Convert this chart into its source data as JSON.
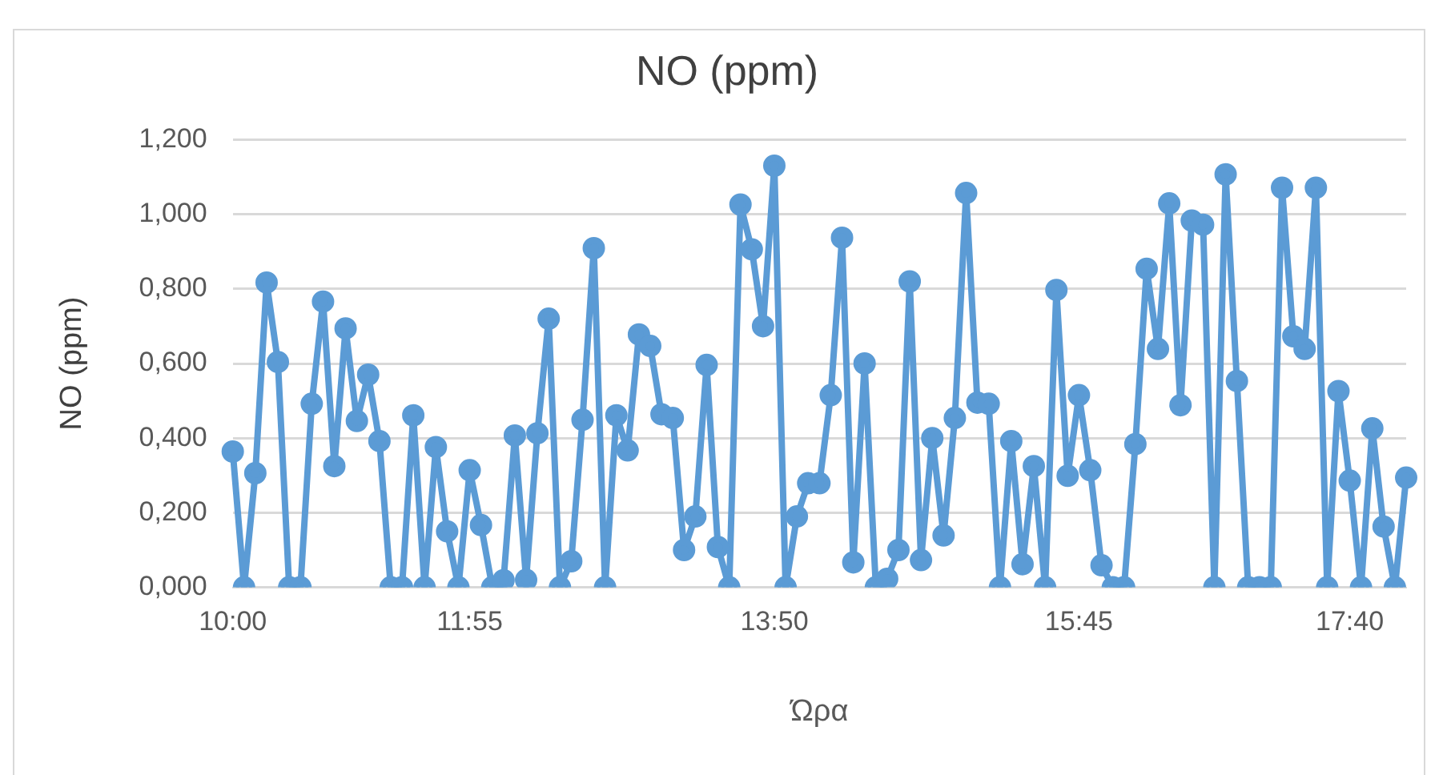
{
  "chart_data": {
    "type": "line",
    "title": "NO (ppm)",
    "xlabel": "Ώρα",
    "ylabel": "NO (ppm)",
    "categories": [
      "10:00",
      null,
      null,
      null,
      null,
      null,
      null,
      null,
      null,
      null,
      null,
      null,
      null,
      null,
      null,
      null,
      null,
      null,
      null,
      null,
      null,
      "11:55",
      null,
      null,
      null,
      null,
      null,
      null,
      null,
      null,
      null,
      null,
      null,
      null,
      null,
      null,
      null,
      null,
      null,
      null,
      null,
      null,
      null,
      null,
      null,
      null,
      null,
      null,
      "13:50",
      null,
      null,
      null,
      null,
      null,
      null,
      null,
      null,
      null,
      null,
      null,
      null,
      null,
      null,
      null,
      null,
      null,
      null,
      null,
      null,
      null,
      null,
      null,
      null,
      null,
      null,
      "15:45",
      null,
      null,
      null,
      null,
      null,
      null,
      null,
      null,
      null,
      null,
      null,
      null,
      null,
      null,
      null,
      null,
      null,
      null,
      null,
      null,
      null,
      null,
      null,
      "17:40",
      null,
      null,
      null,
      null,
      null
    ],
    "series": [
      {
        "color": "#5b9bd5",
        "values": [
          0.364,
          0,
          0.306,
          0.817,
          0.604,
          0,
          0,
          0.492,
          0.766,
          0.325,
          0.694,
          0.446,
          0.57,
          0.392,
          0,
          0,
          0.461,
          0,
          0.376,
          0.15,
          0,
          0.314,
          0.167,
          0,
          0.019,
          0.407,
          0.02,
          0.413,
          0.72,
          0,
          0.07,
          0.449,
          0.909,
          0,
          0.461,
          0.367,
          0.678,
          0.647,
          0.464,
          0.454,
          0.1,
          0.19,
          0.596,
          0.108,
          0,
          1.026,
          0.906,
          0.7,
          1.13,
          0,
          0.19,
          0.279,
          0.279,
          0.515,
          0.937,
          0.067,
          0.6,
          0,
          0.023,
          0.1,
          0.82,
          0.073,
          0.4,
          0.139,
          0.454,
          1.057,
          0.495,
          0.492,
          0,
          0.392,
          0.062,
          0.325,
          0,
          0.797,
          0.299,
          0.515,
          0.314,
          0.059,
          0,
          0,
          0.384,
          0.854,
          0.639,
          1.029,
          0.488,
          0.983,
          0.972,
          0,
          1.107,
          0.553,
          0,
          0,
          0,
          1.071,
          0.673,
          0.639,
          1.071,
          0,
          0.526,
          0.286,
          0,
          0.426,
          0.163,
          0,
          0.294
        ]
      }
    ],
    "ylim": [
      0,
      1.2
    ],
    "yticks": [
      {
        "value": 0,
        "label": "0,000"
      },
      {
        "value": 0.2,
        "label": "0,200"
      },
      {
        "value": 0.4,
        "label": "0,400"
      },
      {
        "value": 0.6,
        "label": "0,600"
      },
      {
        "value": 0.8,
        "label": "0,800"
      },
      {
        "value": 1,
        "label": "1,000"
      },
      {
        "value": 1.2,
        "label": "1,200"
      }
    ],
    "grid": "y",
    "legend": false,
    "marker": "circle",
    "line_style": "solid"
  }
}
